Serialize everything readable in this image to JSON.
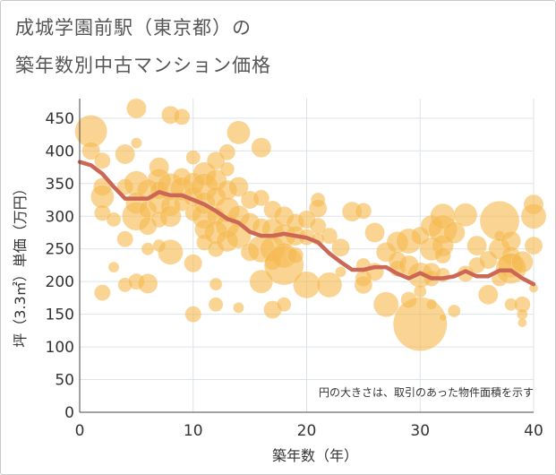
{
  "title_line1": "成城学園前駅（東京都）の",
  "title_line2": "築年数別中古マンション価格",
  "chart_data": {
    "type": "scatter",
    "xlabel": "築年数（年）",
    "ylabel": "坪（3.3㎡）単価（万円）",
    "xlim": [
      0,
      40
    ],
    "ylim": [
      0,
      480
    ],
    "xticks": [
      0,
      10,
      20,
      30,
      40
    ],
    "yticks": [
      0,
      50,
      100,
      150,
      200,
      250,
      300,
      350,
      400,
      450
    ],
    "grid": true,
    "annotation": "円の大きさは、取引のあった物件面積を示す",
    "bubble_color": "#f5b950",
    "line_color": "#cc6655",
    "bubbles": [
      [
        1,
        430,
        18
      ],
      [
        1,
        400,
        10
      ],
      [
        2,
        385,
        9
      ],
      [
        2,
        345,
        10
      ],
      [
        2,
        330,
        13
      ],
      [
        2,
        305,
        9
      ],
      [
        2,
        183,
        9
      ],
      [
        3,
        295,
        8
      ],
      [
        3,
        222,
        6
      ],
      [
        4,
        395,
        11
      ],
      [
        4,
        345,
        9
      ],
      [
        4,
        265,
        9
      ],
      [
        4,
        195,
        8
      ],
      [
        5,
        465,
        11
      ],
      [
        5,
        412,
        6
      ],
      [
        5,
        350,
        14
      ],
      [
        5,
        320,
        12
      ],
      [
        5,
        300,
        16
      ],
      [
        5,
        200,
        9
      ],
      [
        6,
        340,
        12
      ],
      [
        6,
        310,
        10
      ],
      [
        6,
        285,
        10
      ],
      [
        6,
        250,
        7
      ],
      [
        6,
        197,
        11
      ],
      [
        7,
        375,
        11
      ],
      [
        7,
        355,
        13
      ],
      [
        7,
        340,
        10
      ],
      [
        7,
        320,
        12
      ],
      [
        7,
        295,
        9
      ],
      [
        7,
        255,
        7
      ],
      [
        8,
        455,
        10
      ],
      [
        8,
        345,
        15
      ],
      [
        8,
        315,
        11
      ],
      [
        8,
        300,
        12
      ],
      [
        8,
        245,
        14
      ],
      [
        9,
        452,
        9
      ],
      [
        9,
        360,
        10
      ],
      [
        9,
        342,
        13
      ],
      [
        9,
        320,
        9
      ],
      [
        10,
        390,
        8
      ],
      [
        10,
        350,
        12
      ],
      [
        10,
        330,
        11
      ],
      [
        10,
        305,
        9
      ],
      [
        10,
        228,
        10
      ],
      [
        10,
        150,
        9
      ],
      [
        11,
        365,
        13
      ],
      [
        11,
        345,
        15
      ],
      [
        11,
        320,
        12
      ],
      [
        11,
        300,
        14
      ],
      [
        11,
        280,
        11
      ],
      [
        11,
        260,
        9
      ],
      [
        12,
        385,
        10
      ],
      [
        12,
        355,
        12
      ],
      [
        12,
        330,
        11
      ],
      [
        12,
        300,
        10
      ],
      [
        12,
        275,
        13
      ],
      [
        12,
        250,
        9
      ],
      [
        12,
        196,
        7
      ],
      [
        12,
        165,
        8
      ],
      [
        13,
        398,
        9
      ],
      [
        13,
        372,
        8
      ],
      [
        13,
        340,
        11
      ],
      [
        13,
        310,
        14
      ],
      [
        13,
        285,
        13
      ],
      [
        13,
        262,
        12
      ],
      [
        14,
        428,
        13
      ],
      [
        14,
        345,
        11
      ],
      [
        14,
        300,
        12
      ],
      [
        14,
        270,
        14
      ],
      [
        14,
        160,
        6
      ],
      [
        15,
        325,
        10
      ],
      [
        15,
        290,
        11
      ],
      [
        15,
        245,
        10
      ],
      [
        16,
        405,
        11
      ],
      [
        16,
        328,
        9
      ],
      [
        16,
        283,
        10
      ],
      [
        16,
        250,
        15
      ],
      [
        16,
        200,
        13
      ],
      [
        17,
        310,
        10
      ],
      [
        17,
        280,
        12
      ],
      [
        17,
        250,
        14
      ],
      [
        17,
        230,
        9
      ],
      [
        17,
        157,
        10
      ],
      [
        18,
        300,
        11
      ],
      [
        18,
        270,
        13
      ],
      [
        18,
        240,
        14
      ],
      [
        18,
        225,
        22
      ],
      [
        18,
        165,
        8
      ],
      [
        19,
        290,
        10
      ],
      [
        19,
        270,
        11
      ],
      [
        19,
        240,
        9
      ],
      [
        20,
        295,
        10
      ],
      [
        20,
        268,
        9
      ],
      [
        20,
        195,
        15
      ],
      [
        21,
        325,
        8
      ],
      [
        21,
        312,
        10
      ],
      [
        21,
        285,
        9
      ],
      [
        21,
        265,
        7
      ],
      [
        22,
        270,
        9
      ],
      [
        22,
        195,
        14
      ],
      [
        23,
        252,
        10
      ],
      [
        23,
        215,
        6
      ],
      [
        24,
        307,
        11
      ],
      [
        25,
        308,
        9
      ],
      [
        25,
        225,
        8
      ],
      [
        25,
        205,
        9
      ],
      [
        25,
        195,
        10
      ],
      [
        26,
        275,
        11
      ],
      [
        26,
        215,
        10
      ],
      [
        27,
        245,
        11
      ],
      [
        27,
        165,
        14
      ],
      [
        28,
        260,
        12
      ],
      [
        28,
        232,
        10
      ],
      [
        28,
        220,
        9
      ],
      [
        29,
        262,
        14
      ],
      [
        29,
        225,
        11
      ],
      [
        29,
        172,
        9
      ],
      [
        30,
        270,
        10
      ],
      [
        30,
        210,
        14
      ],
      [
        30,
        185,
        7
      ],
      [
        30,
        135,
        30
      ],
      [
        31,
        285,
        12
      ],
      [
        31,
        250,
        13
      ],
      [
        31,
        215,
        10
      ],
      [
        31,
        205,
        9
      ],
      [
        31,
        165,
        6
      ],
      [
        32,
        300,
        14
      ],
      [
        32,
        280,
        16
      ],
      [
        32,
        255,
        12
      ],
      [
        32,
        240,
        9
      ],
      [
        32,
        210,
        8
      ],
      [
        32,
        145,
        4
      ],
      [
        33,
        275,
        12
      ],
      [
        33,
        155,
        7
      ],
      [
        34,
        302,
        13
      ],
      [
        34,
        212,
        9
      ],
      [
        35,
        255,
        11
      ],
      [
        35,
        225,
        9
      ],
      [
        36,
        233,
        10
      ],
      [
        36,
        180,
        11
      ],
      [
        37,
        293,
        22
      ],
      [
        37,
        270,
        6
      ],
      [
        37,
        250,
        12
      ],
      [
        37,
        205,
        9
      ],
      [
        38,
        262,
        11
      ],
      [
        38,
        240,
        10
      ],
      [
        38,
        225,
        14
      ],
      [
        38,
        220,
        17
      ],
      [
        38,
        165,
        7
      ],
      [
        39,
        230,
        12
      ],
      [
        39,
        165,
        9
      ],
      [
        39,
        150,
        6
      ],
      [
        39,
        137,
        5
      ],
      [
        40,
        318,
        11
      ],
      [
        40,
        300,
        14
      ],
      [
        40,
        255,
        10
      ],
      [
        40,
        190,
        5
      ]
    ],
    "trend": [
      [
        0,
        383
      ],
      [
        1,
        378
      ],
      [
        2,
        365
      ],
      [
        3,
        345
      ],
      [
        4,
        327
      ],
      [
        5,
        327
      ],
      [
        6,
        327
      ],
      [
        7,
        337
      ],
      [
        8,
        332
      ],
      [
        9,
        332
      ],
      [
        10,
        325
      ],
      [
        11,
        318
      ],
      [
        12,
        308
      ],
      [
        13,
        296
      ],
      [
        14,
        290
      ],
      [
        15,
        276
      ],
      [
        16,
        270
      ],
      [
        17,
        270
      ],
      [
        18,
        273
      ],
      [
        19,
        270
      ],
      [
        20,
        267
      ],
      [
        21,
        260
      ],
      [
        22,
        243
      ],
      [
        23,
        230
      ],
      [
        24,
        218
      ],
      [
        25,
        218
      ],
      [
        26,
        222
      ],
      [
        27,
        222
      ],
      [
        28,
        212
      ],
      [
        29,
        205
      ],
      [
        30,
        213
      ],
      [
        31,
        205
      ],
      [
        32,
        205
      ],
      [
        33,
        208
      ],
      [
        34,
        216
      ],
      [
        35,
        208
      ],
      [
        36,
        208
      ],
      [
        37,
        217
      ],
      [
        38,
        217
      ],
      [
        39,
        205
      ],
      [
        40,
        196
      ]
    ]
  }
}
